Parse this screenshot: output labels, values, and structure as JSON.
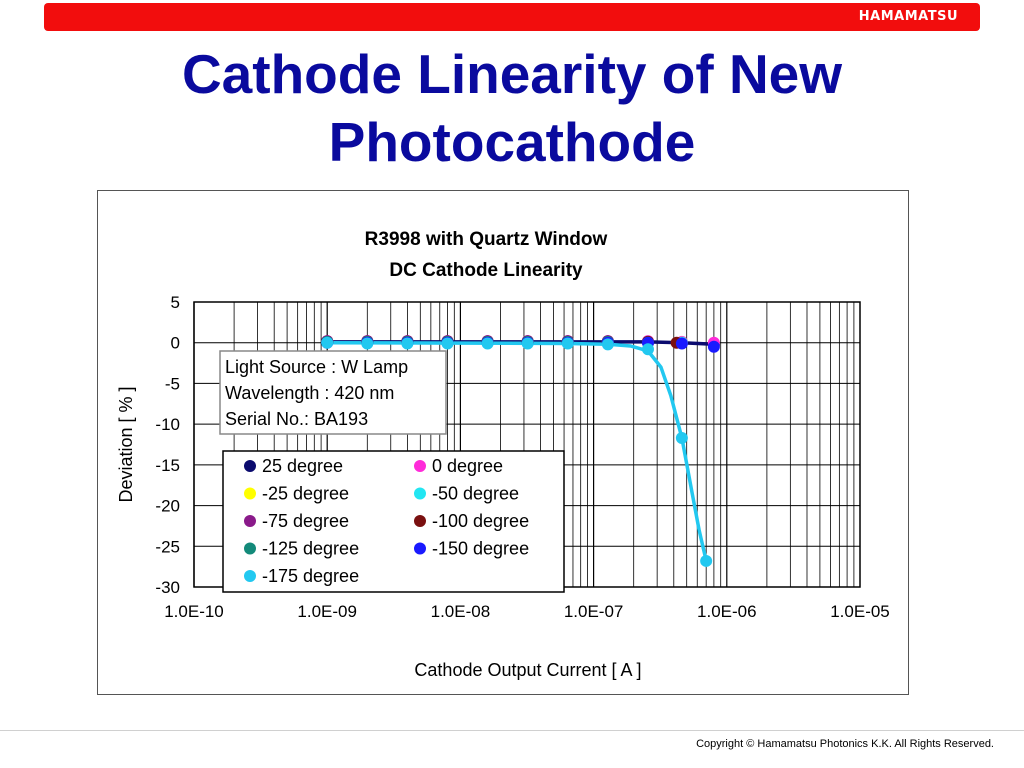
{
  "header": {
    "logo_text": "HAMAMATSU",
    "bar_color": "#f20d0d"
  },
  "slide": {
    "title": "Cathode Linearity of New Photocathode",
    "title_color": "#0a0a9e"
  },
  "footer": {
    "copyright": "Copyright © Hamamatsu Photonics K.K.   All Rights Reserved."
  },
  "chart_data": {
    "type": "scatter",
    "title_lines": [
      "R3998 with Quartz Window",
      "DC Cathode Linearity"
    ],
    "xlabel": "Cathode Output Current   [ A ]",
    "ylabel": "Deviation   [ % ]",
    "x_scale": "log",
    "xlim": [
      1e-10,
      1e-05
    ],
    "ylim": [
      -30,
      5
    ],
    "x_ticks": [
      1e-10,
      1e-09,
      1e-08,
      1e-07,
      1e-06,
      1e-05
    ],
    "x_tick_labels": [
      "1.0E-10",
      "1.0E-09",
      "1.0E-08",
      "1.0E-07",
      "1.0E-06",
      "1.0E-05"
    ],
    "y_ticks": [
      5,
      0,
      -5,
      -10,
      -15,
      -20,
      -25,
      -30
    ],
    "y_tick_labels": [
      "5",
      "0",
      "-5",
      "-10",
      "-15",
      "-20",
      "-25",
      "-30"
    ],
    "grid": true,
    "info_box": [
      "Light Source : W Lamp",
      "Wavelength : 420 nm",
      "Serial No.: BA193"
    ],
    "legend_placement": "lower-left",
    "series": [
      {
        "name": "25 degree",
        "color": "#0b0b6e",
        "x": [
          1e-09,
          2e-09,
          4e-09,
          8e-09,
          1.6e-08,
          3.2e-08,
          6.4e-08,
          1.28e-07,
          2.56e-07,
          4.6e-07,
          8e-07
        ],
        "y": [
          0.1,
          0.1,
          0.1,
          0.1,
          0.1,
          0.1,
          0.1,
          0.1,
          0.1,
          0.0,
          -0.2
        ]
      },
      {
        "name": "0 degree",
        "color": "#ff2bd9",
        "x": [
          1e-09,
          2e-09,
          4e-09,
          8e-09,
          1.6e-08,
          3.2e-08,
          6.4e-08,
          1.28e-07,
          2.56e-07,
          4.6e-07,
          8e-07
        ],
        "y": [
          0.2,
          0.2,
          0.2,
          0.2,
          0.2,
          0.2,
          0.2,
          0.2,
          0.2,
          0.1,
          0.0
        ]
      },
      {
        "name": "-25 degree",
        "color": "#ffff00",
        "x": [
          1e-09,
          2e-09,
          4e-09,
          8e-09,
          1.6e-08,
          3.2e-08,
          6.4e-08,
          1.28e-07,
          2.56e-07,
          4.6e-07
        ],
        "y": [
          0.1,
          0.1,
          0.1,
          0.1,
          0.1,
          0.1,
          0.1,
          0.1,
          0.1,
          0.0
        ]
      },
      {
        "name": "-50 degree",
        "color": "#22e6f2",
        "x": [
          1e-09,
          2e-09,
          4e-09,
          8e-09,
          1.6e-08,
          3.2e-08,
          6.4e-08,
          1.28e-07,
          2.56e-07,
          4.6e-07
        ],
        "y": [
          0.1,
          0.1,
          0.1,
          0.1,
          0.1,
          0.1,
          0.1,
          0.1,
          0.1,
          0.0
        ]
      },
      {
        "name": "-75 degree",
        "color": "#8a1a8a",
        "x": [
          1e-09,
          2e-09,
          4e-09,
          8e-09,
          1.6e-08,
          3.2e-08,
          6.4e-08,
          1.28e-07,
          2.56e-07
        ],
        "y": [
          0.2,
          0.2,
          0.2,
          0.2,
          0.2,
          0.2,
          0.2,
          0.2,
          0.1
        ]
      },
      {
        "name": "-100 degree",
        "color": "#7a1010",
        "x": [
          1e-09,
          2e-09,
          4e-09,
          8e-09,
          1.6e-08,
          3.2e-08,
          6.4e-08,
          1.28e-07,
          2.56e-07,
          4.2e-07
        ],
        "y": [
          0.1,
          0.1,
          0.1,
          0.1,
          0.1,
          0.1,
          0.1,
          0.1,
          0.1,
          0.0
        ]
      },
      {
        "name": "-125 degree",
        "color": "#138a7a",
        "x": [
          1e-09,
          2e-09,
          4e-09,
          8e-09,
          1.6e-08,
          3.2e-08,
          6.4e-08,
          1.28e-07,
          2.56e-07
        ],
        "y": [
          0.1,
          0.1,
          0.1,
          0.1,
          0.1,
          0.1,
          0.1,
          0.1,
          0.0
        ]
      },
      {
        "name": "-150 degree",
        "color": "#1a1aff",
        "x": [
          1e-09,
          2e-09,
          4e-09,
          8e-09,
          1.6e-08,
          3.2e-08,
          6.4e-08,
          1.28e-07,
          2.56e-07,
          4.6e-07,
          8e-07
        ],
        "y": [
          0.0,
          0.0,
          0.0,
          0.0,
          0.0,
          0.0,
          0.0,
          0.0,
          0.0,
          -0.1,
          -0.5
        ]
      },
      {
        "name": "-175 degree",
        "color": "#22c8f0",
        "x": [
          1e-09,
          2e-09,
          4e-09,
          8e-09,
          1.6e-08,
          3.2e-08,
          6.4e-08,
          1.28e-07,
          2.56e-07,
          4.6e-07,
          7e-07
        ],
        "y": [
          0.0,
          -0.1,
          -0.1,
          -0.1,
          -0.1,
          -0.1,
          -0.1,
          -0.2,
          -0.8,
          -11.7,
          -26.8
        ]
      }
    ],
    "fit_lines": [
      {
        "series": "25 degree",
        "color": "#0b0b6e",
        "x": [
          1e-09,
          2.56e-07,
          4.6e-07,
          8e-07
        ],
        "y": [
          0.1,
          0.1,
          0.0,
          -0.2
        ]
      },
      {
        "series": "-175 degree",
        "color": "#22c8f0",
        "x": [
          1e-09,
          6.4e-08,
          1.28e-07,
          1.9e-07,
          2.56e-07,
          3.2e-07,
          3.8e-07,
          4.6e-07,
          5.5e-07,
          6.2e-07,
          7e-07
        ],
        "y": [
          0.0,
          -0.1,
          -0.2,
          -0.4,
          -1.0,
          -3.0,
          -6.5,
          -11.7,
          -18.5,
          -23.0,
          -26.8
        ]
      }
    ]
  }
}
